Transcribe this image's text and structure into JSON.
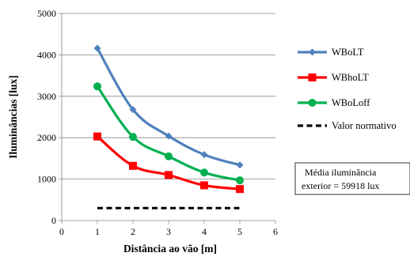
{
  "chart_data": {
    "type": "line",
    "title": "",
    "xlabel": "Distância ao vão [m]",
    "ylabel": "Iluminâncias [lux]",
    "xlim": [
      0,
      6
    ],
    "ylim": [
      0,
      5000
    ],
    "xticks": [
      0,
      1,
      2,
      3,
      4,
      5,
      6
    ],
    "yticks": [
      0,
      1000,
      2000,
      3000,
      4000,
      5000
    ],
    "grid": "horizontal",
    "legend_position": "right",
    "x": [
      1,
      2,
      3,
      4,
      5
    ],
    "series": [
      {
        "name": "WBoLT",
        "values": [
          4160,
          2680,
          2040,
          1590,
          1340
        ],
        "color": "#4f81bd",
        "marker": "diamond",
        "line": "solid"
      },
      {
        "name": "WBhoLT",
        "values": [
          2030,
          1320,
          1100,
          850,
          760
        ],
        "color": "#ff0000",
        "marker": "square",
        "line": "solid"
      },
      {
        "name": "WBoLoff",
        "values": [
          3240,
          2020,
          1550,
          1160,
          970
        ],
        "color": "#00b050",
        "marker": "circle",
        "line": "solid"
      },
      {
        "name": "Valor normativo",
        "values": [
          300,
          300,
          300,
          300,
          300
        ],
        "color": "#000000",
        "marker": "none",
        "line": "dashed"
      }
    ],
    "annotation": {
      "line1": "Média iluminância",
      "line2": "exterior = 59918 lux"
    }
  }
}
